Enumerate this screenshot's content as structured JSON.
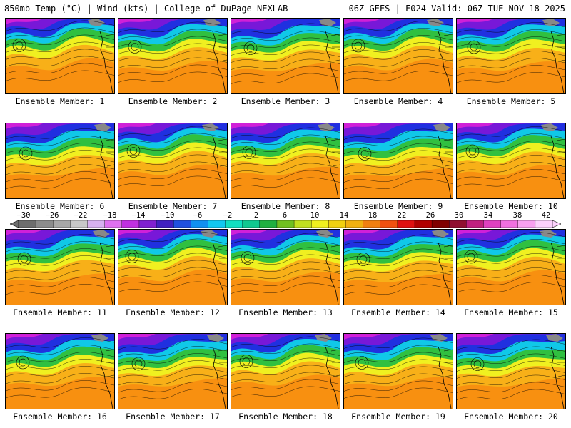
{
  "header": {
    "left": "850mb Temp (°C) | Wind (kts) | College of DuPage NEXLAB",
    "right": "06Z GEFS | F024 Valid: 06Z TUE NOV 18 2025"
  },
  "members": [
    {
      "label": "Ensemble Member: 1"
    },
    {
      "label": "Ensemble Member: 2"
    },
    {
      "label": "Ensemble Member: 3"
    },
    {
      "label": "Ensemble Member: 4"
    },
    {
      "label": "Ensemble Member: 5"
    },
    {
      "label": "Ensemble Member: 6"
    },
    {
      "label": "Ensemble Member: 7"
    },
    {
      "label": "Ensemble Member: 8"
    },
    {
      "label": "Ensemble Member: 9"
    },
    {
      "label": "Ensemble Member: 10"
    },
    {
      "label": "Ensemble Member: 11"
    },
    {
      "label": "Ensemble Member: 12"
    },
    {
      "label": "Ensemble Member: 13"
    },
    {
      "label": "Ensemble Member: 14"
    },
    {
      "label": "Ensemble Member: 15"
    },
    {
      "label": "Ensemble Member: 16"
    },
    {
      "label": "Ensemble Member: 17"
    },
    {
      "label": "Ensemble Member: 18"
    },
    {
      "label": "Ensemble Member: 19"
    },
    {
      "label": "Ensemble Member: 20"
    }
  ],
  "colorbar": {
    "ticks": [
      "−30",
      "−26",
      "−22",
      "−18",
      "−14",
      "−10",
      "−6",
      "−2",
      "2",
      "6",
      "10",
      "14",
      "18",
      "22",
      "26",
      "30",
      "34",
      "38",
      "42"
    ],
    "colors": [
      "#6e6e6e",
      "#8c8c8c",
      "#a8a8a8",
      "#c8c8c8",
      "#d8b0f0",
      "#e070f0",
      "#c030e0",
      "#8020d0",
      "#4020c0",
      "#2050e0",
      "#1090f0",
      "#10c8f0",
      "#10e0c0",
      "#10c890",
      "#20b040",
      "#70c020",
      "#c0e020",
      "#f0f020",
      "#f0d010",
      "#f0b010",
      "#f08010",
      "#f05010",
      "#e01010",
      "#b00000",
      "#800000",
      "#901030",
      "#c02080",
      "#e040c0",
      "#f070e0",
      "#f8a0f0",
      "#fcd0fc"
    ]
  },
  "colors": {
    "magenta": "#d020d8",
    "purple": "#7818d8",
    "blue": "#2030e0",
    "cyan": "#10c8e8",
    "green": "#30c040",
    "yellow": "#f0f020",
    "orange": "#f8b018",
    "deep_orange": "#f89010",
    "gray": "#888888"
  }
}
